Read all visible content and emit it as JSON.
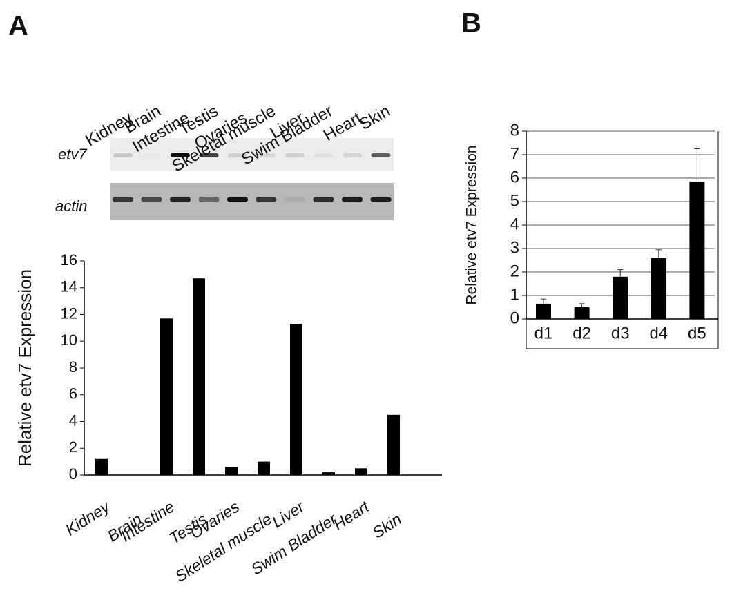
{
  "panels": [
    "A",
    "B"
  ],
  "gel": {
    "lane_labels": [
      "Kidney",
      "Brain",
      "Intestine",
      "Testis",
      "Ovaries",
      "Skeletal muscle",
      "Liver",
      "Swim Bladder",
      "Heart",
      "Skin"
    ],
    "row_labels": [
      "etv7",
      "actin"
    ]
  },
  "chart_data": [
    {
      "type": "bar",
      "ylabel": "Relative etv7 Expression",
      "categories": [
        "Kidney",
        "Brain",
        "Intestine",
        "Testis",
        "Ovaries",
        "Skeletal muscle",
        "Liver",
        "Swim Bladder",
        "Heart",
        "Skin"
      ],
      "values": [
        1.2,
        0,
        11.7,
        14.7,
        0.6,
        1.0,
        11.3,
        0.2,
        0.5,
        4.5
      ],
      "color": "#000000",
      "ylim": [
        0,
        16
      ],
      "yticks": [
        0,
        2,
        4,
        6,
        8,
        10,
        12,
        14,
        16
      ],
      "grid": false
    },
    {
      "type": "bar",
      "ylabel": "Relative etv7 Expression",
      "categories": [
        "d1",
        "d2",
        "d3",
        "d4",
        "d5"
      ],
      "values": [
        0.65,
        0.5,
        1.8,
        2.6,
        5.85
      ],
      "errors": [
        0.2,
        0.15,
        0.3,
        0.35,
        1.4
      ],
      "color": "#000000",
      "ylim": [
        0,
        8
      ],
      "yticks": [
        0,
        1,
        2,
        3,
        4,
        5,
        6,
        7,
        8
      ],
      "grid": true
    }
  ]
}
